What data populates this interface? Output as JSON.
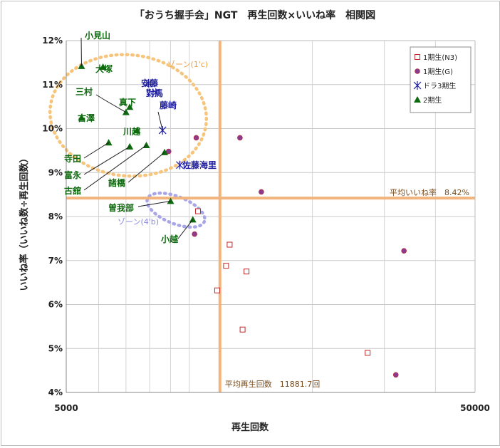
{
  "chart_data": {
    "type": "scatter",
    "title": "「おうち握手会」NGT　再生回数×いいね率　相関図",
    "xlabel": "再生回数",
    "ylabel": "いいね率（いいね数÷再生回数）",
    "x_scale": "log",
    "xlim": [
      5000,
      50000
    ],
    "x_tick_labels": [
      "5000",
      "50000"
    ],
    "ylim": [
      0.04,
      0.12
    ],
    "y_ticks": [
      0.04,
      0.05,
      0.06,
      0.07,
      0.08,
      0.09,
      0.1,
      0.11,
      0.12
    ],
    "y_tick_labels": [
      "4%",
      "5%",
      "6%",
      "7%",
      "8%",
      "9%",
      "10%",
      "11%",
      "12%"
    ],
    "grid": true,
    "legend_position": "top-right",
    "series": [
      {
        "name": "1期生(N3)",
        "marker": "open-square",
        "color": "#c0282a",
        "points": [
          {
            "x": 10500,
            "y": 0.0812
          },
          {
            "x": 11700,
            "y": 0.0632
          },
          {
            "x": 12300,
            "y": 0.0688
          },
          {
            "x": 12550,
            "y": 0.0736
          },
          {
            "x": 13500,
            "y": 0.0543
          },
          {
            "x": 13800,
            "y": 0.0675
          },
          {
            "x": 27300,
            "y": 0.049
          }
        ]
      },
      {
        "name": "1期生(G)",
        "marker": "circle",
        "color": "#8a3a8f",
        "points": [
          {
            "x": 8900,
            "y": 0.0948
          },
          {
            "x": 10300,
            "y": 0.076
          },
          {
            "x": 10400,
            "y": 0.0979
          },
          {
            "x": 13300,
            "y": 0.0979
          },
          {
            "x": 15000,
            "y": 0.0856
          },
          {
            "x": 32000,
            "y": 0.044
          },
          {
            "x": 33500,
            "y": 0.0722
          }
        ]
      },
      {
        "name": "ドラ3期生",
        "marker": "asterisk",
        "color": "#1f1fa0",
        "points": [
          {
            "label": "安藤",
            "x": 7950,
            "y": 0.1103
          },
          {
            "label": "對馬",
            "x": 8280,
            "y": 0.1082
          },
          {
            "label": "藤崎",
            "x": 8600,
            "y": 0.0996
          },
          {
            "label": "佐藤海里",
            "x": 9480,
            "y": 0.0917
          }
        ]
      },
      {
        "name": "2期生",
        "marker": "triangle",
        "color": "#1a7a1a",
        "points": [
          {
            "label": "小見山",
            "x": 5450,
            "y": 0.1142
          },
          {
            "label": "大塚",
            "x": 6150,
            "y": 0.114
          },
          {
            "label": "真下",
            "x": 7150,
            "y": 0.1049
          },
          {
            "label": "三村",
            "x": 7000,
            "y": 0.1037
          },
          {
            "label": "古澤",
            "x": 5450,
            "y": 0.1025
          },
          {
            "label": "川越",
            "x": 7450,
            "y": 0.0996
          },
          {
            "label": "寺田",
            "x": 6350,
            "y": 0.0968
          },
          {
            "label": "富永",
            "x": 7150,
            "y": 0.0959
          },
          {
            "label": "古舘",
            "x": 7850,
            "y": 0.0962
          },
          {
            "label": "諸橋",
            "x": 8700,
            "y": 0.0946
          },
          {
            "label": "曽我部",
            "x": 9000,
            "y": 0.0835
          },
          {
            "label": "小越",
            "x": 10200,
            "y": 0.0793
          }
        ]
      }
    ],
    "reference_lines": [
      {
        "axis": "y",
        "value": 0.0842,
        "label": "平均いいね率　8.42%"
      },
      {
        "axis": "x",
        "value": 11881.7,
        "label": "平均再生回数　11881.7回"
      }
    ],
    "zones": [
      {
        "label": "ゾーン(1'c)",
        "color": "#f6c47a"
      },
      {
        "label": "ゾーン(4'b)",
        "color": "#a9a6e8"
      }
    ]
  }
}
